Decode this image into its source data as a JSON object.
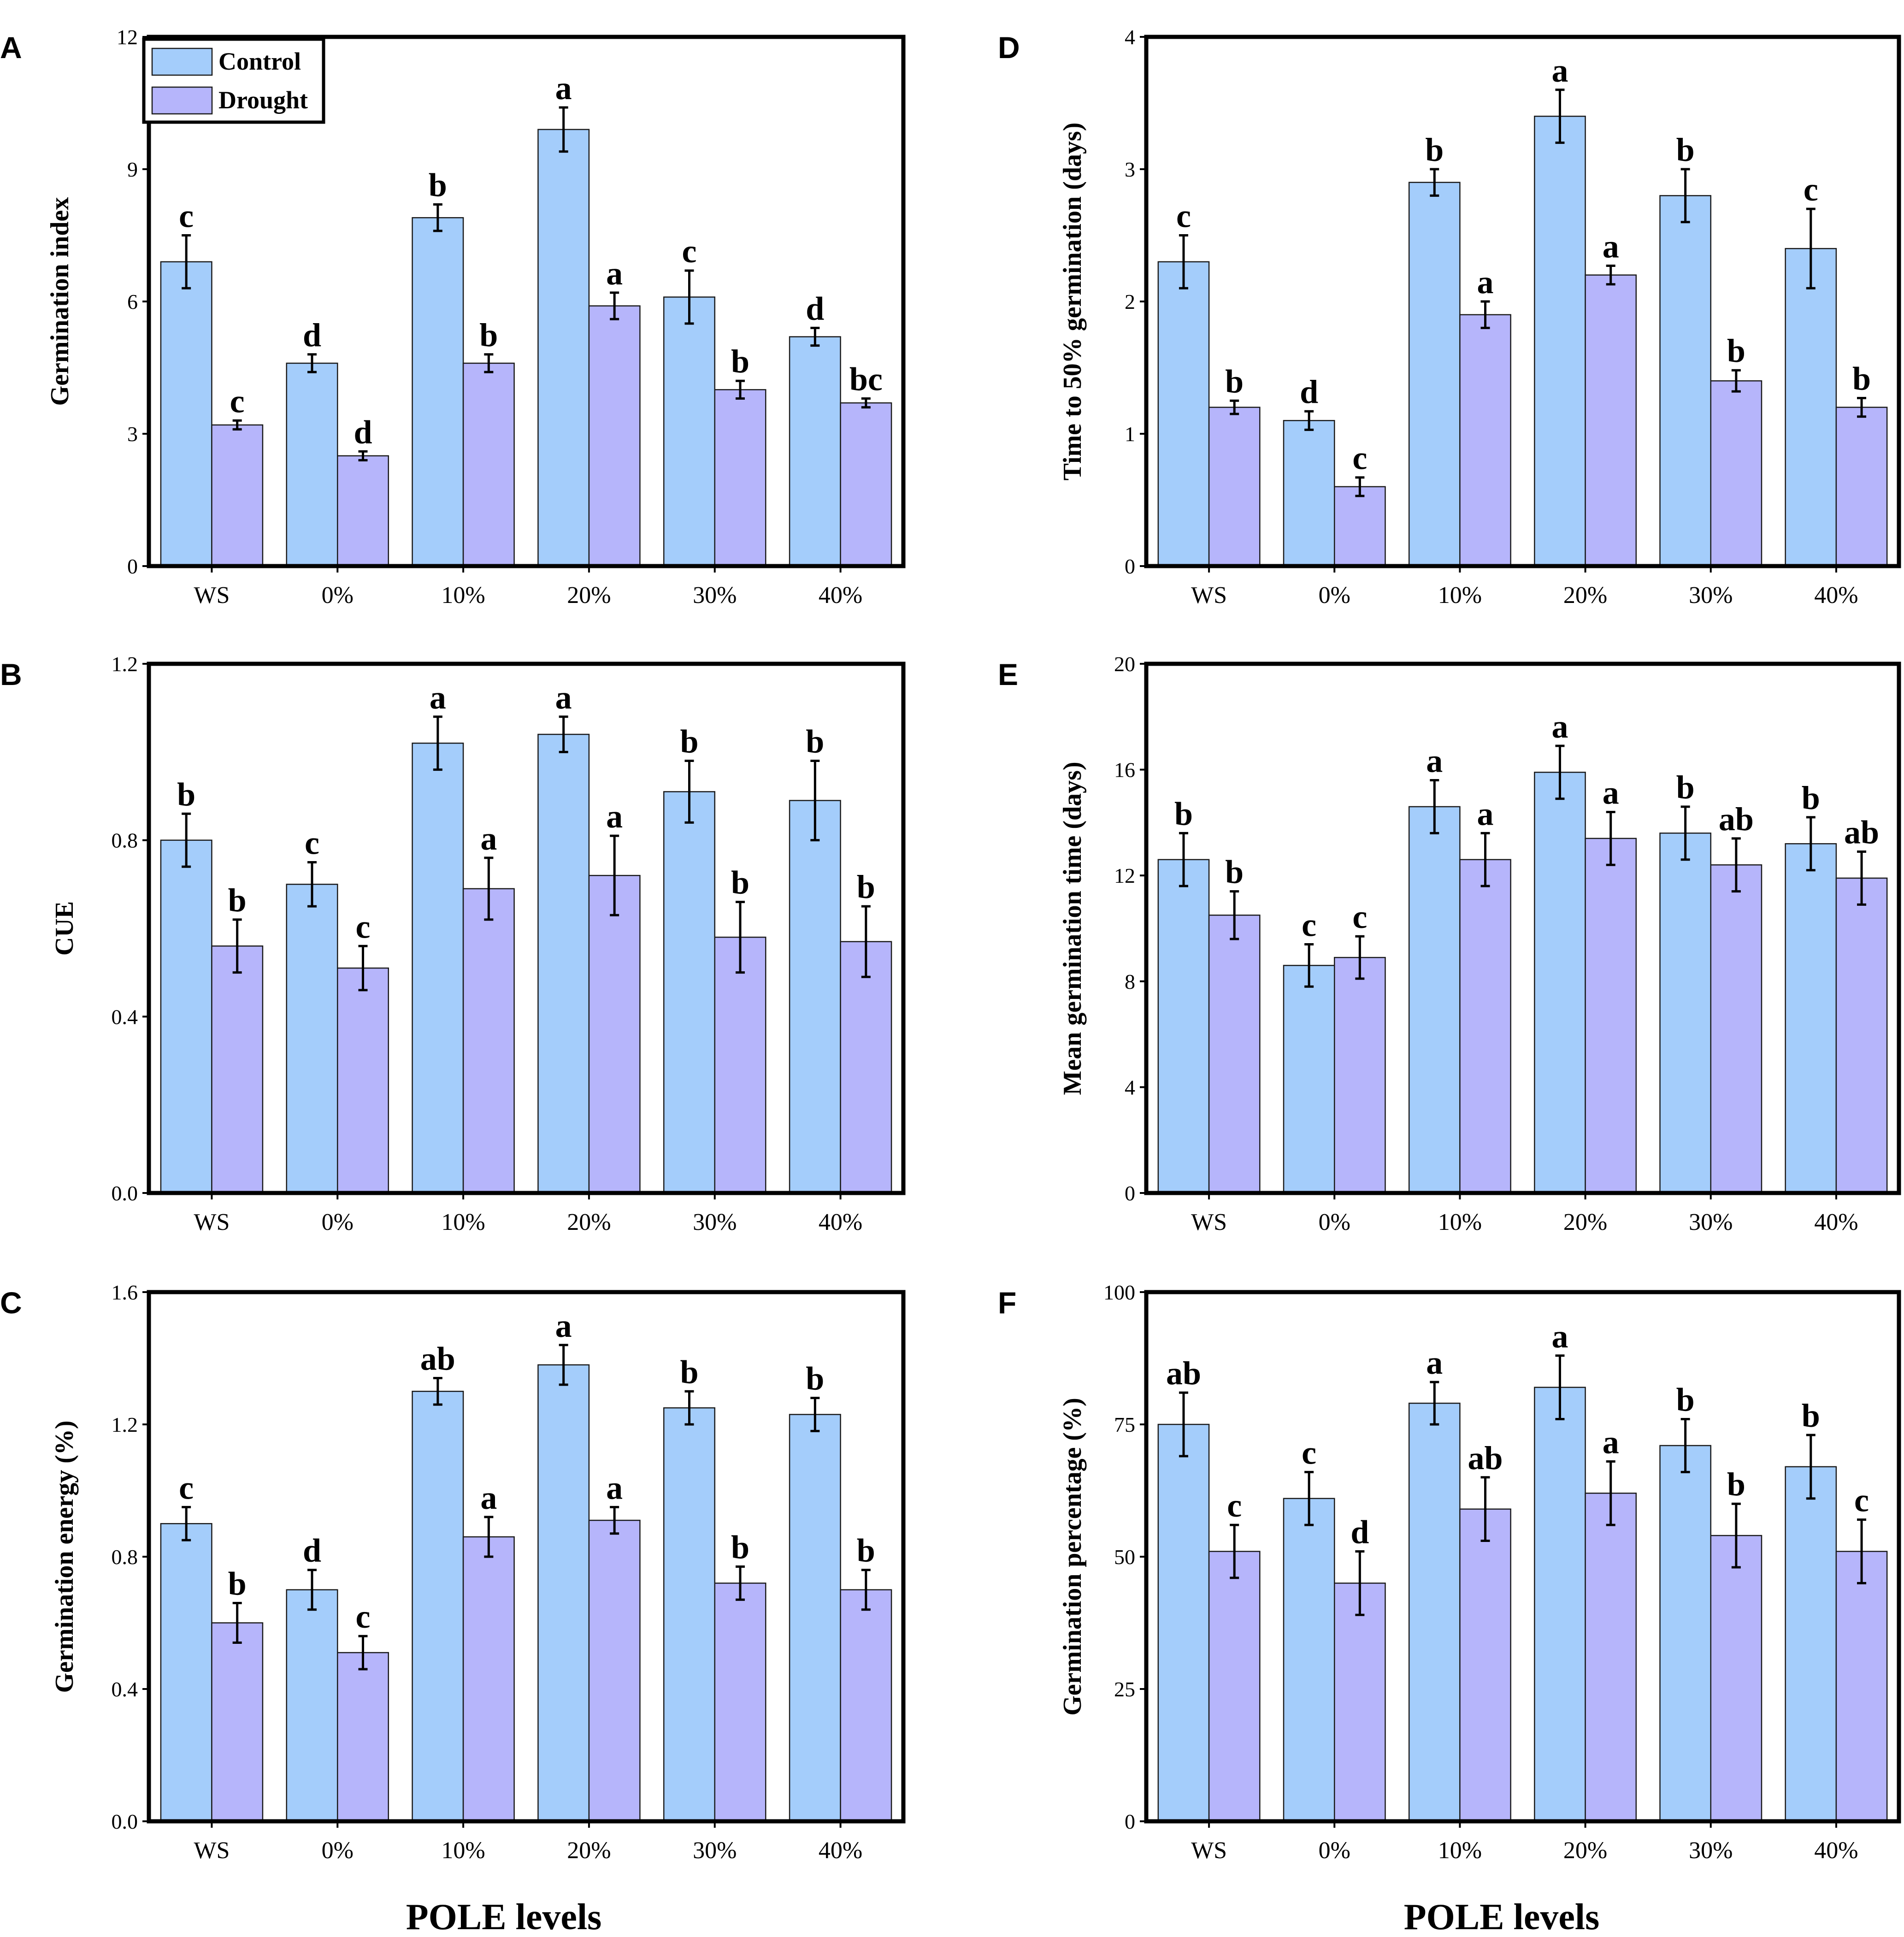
{
  "legend": {
    "items": [
      {
        "name": "Control",
        "color": "#a4cdfb"
      },
      {
        "name": "Drought",
        "color": "#b6b5fb"
      }
    ]
  },
  "xtitle": "POLE levels",
  "chart_data": [
    {
      "panel": "A",
      "type": "bar",
      "ylabel": "Germination index",
      "categories": [
        "WS",
        "0%",
        "10%",
        "20%",
        "30%",
        "40%"
      ],
      "ylim": [
        0,
        12
      ],
      "yticks": [
        "0",
        "3",
        "6",
        "9",
        "12"
      ],
      "series": [
        {
          "name": "Control",
          "values": [
            6.9,
            4.6,
            7.9,
            9.9,
            6.1,
            5.2
          ],
          "errors": [
            0.6,
            0.2,
            0.3,
            0.5,
            0.6,
            0.2
          ],
          "letters": [
            "c",
            "d",
            "b",
            "a",
            "c",
            "d"
          ]
        },
        {
          "name": "Drought",
          "values": [
            3.2,
            2.5,
            4.6,
            5.9,
            4.0,
            3.7
          ],
          "errors": [
            0.1,
            0.1,
            0.2,
            0.3,
            0.2,
            0.1
          ],
          "letters": [
            "c",
            "d",
            "b",
            "a",
            "b",
            "bc"
          ]
        }
      ]
    },
    {
      "panel": "B",
      "type": "bar",
      "ylabel": "CUE",
      "categories": [
        "WS",
        "0%",
        "10%",
        "20%",
        "30%",
        "40%"
      ],
      "ylim": [
        0,
        1.2
      ],
      "yticks": [
        "0.0",
        "0.4",
        "0.8",
        "1.2"
      ],
      "series": [
        {
          "name": "Control",
          "values": [
            0.8,
            0.7,
            1.02,
            1.04,
            0.91,
            0.89
          ],
          "errors": [
            0.06,
            0.05,
            0.06,
            0.04,
            0.07,
            0.09
          ],
          "letters": [
            "b",
            "c",
            "a",
            "a",
            "b",
            "b"
          ]
        },
        {
          "name": "Drought",
          "values": [
            0.56,
            0.51,
            0.69,
            0.72,
            0.58,
            0.57
          ],
          "errors": [
            0.06,
            0.05,
            0.07,
            0.09,
            0.08,
            0.08
          ],
          "letters": [
            "b",
            "c",
            "a",
            "a",
            "b",
            "b"
          ]
        }
      ]
    },
    {
      "panel": "C",
      "type": "bar",
      "ylabel": "Germination energy (%)",
      "categories": [
        "WS",
        "0%",
        "10%",
        "20%",
        "30%",
        "40%"
      ],
      "ylim": [
        0,
        1.6
      ],
      "yticks": [
        "0.0",
        "0.4",
        "0.8",
        "1.2",
        "1.6"
      ],
      "series": [
        {
          "name": "Control",
          "values": [
            0.9,
            0.7,
            1.3,
            1.38,
            1.25,
            1.23
          ],
          "errors": [
            0.05,
            0.06,
            0.04,
            0.06,
            0.05,
            0.05
          ],
          "letters": [
            "c",
            "d",
            "ab",
            "a",
            "b",
            "b"
          ]
        },
        {
          "name": "Drought",
          "values": [
            0.6,
            0.51,
            0.86,
            0.91,
            0.72,
            0.7
          ],
          "errors": [
            0.06,
            0.05,
            0.06,
            0.04,
            0.05,
            0.06
          ],
          "letters": [
            "b",
            "c",
            "a",
            "a",
            "b",
            "b"
          ]
        }
      ]
    },
    {
      "panel": "D",
      "type": "bar",
      "ylabel": "Time to 50% germination (days)",
      "categories": [
        "WS",
        "0%",
        "10%",
        "20%",
        "30%",
        "40%"
      ],
      "ylim": [
        0,
        4
      ],
      "yticks": [
        "0",
        "1",
        "2",
        "3",
        "4"
      ],
      "series": [
        {
          "name": "Control",
          "values": [
            2.3,
            1.1,
            2.9,
            3.4,
            2.8,
            2.4
          ],
          "errors": [
            0.2,
            0.07,
            0.1,
            0.2,
            0.2,
            0.3
          ],
          "letters": [
            "c",
            "d",
            "b",
            "a",
            "b",
            "c"
          ]
        },
        {
          "name": "Drought",
          "values": [
            1.2,
            0.6,
            1.9,
            2.2,
            1.4,
            1.2
          ],
          "errors": [
            0.05,
            0.07,
            0.1,
            0.07,
            0.08,
            0.07
          ],
          "letters": [
            "b",
            "c",
            "a",
            "a",
            "b",
            "b"
          ]
        }
      ]
    },
    {
      "panel": "E",
      "type": "bar",
      "ylabel": "Mean germination time (days)",
      "categories": [
        "WS",
        "0%",
        "10%",
        "20%",
        "30%",
        "40%"
      ],
      "ylim": [
        0,
        20
      ],
      "yticks": [
        "0",
        "4",
        "8",
        "12",
        "16",
        "20"
      ],
      "series": [
        {
          "name": "Control",
          "values": [
            12.6,
            8.6,
            14.6,
            15.9,
            13.6,
            13.2
          ],
          "errors": [
            1.0,
            0.8,
            1.0,
            1.0,
            1.0,
            1.0
          ],
          "letters": [
            "b",
            "c",
            "a",
            "a",
            "b",
            "b"
          ]
        },
        {
          "name": "Drought",
          "values": [
            10.5,
            8.9,
            12.6,
            13.4,
            12.4,
            11.9
          ],
          "errors": [
            0.9,
            0.8,
            1.0,
            1.0,
            1.0,
            1.0
          ],
          "letters": [
            "b",
            "c",
            "a",
            "a",
            "ab",
            "ab"
          ]
        }
      ]
    },
    {
      "panel": "F",
      "type": "bar",
      "ylabel": "Germination percentage (%)",
      "categories": [
        "WS",
        "0%",
        "10%",
        "20%",
        "30%",
        "40%"
      ],
      "ylim": [
        0,
        100
      ],
      "yticks": [
        "0",
        "25",
        "50",
        "75",
        "100"
      ],
      "series": [
        {
          "name": "Control",
          "values": [
            75,
            61,
            79,
            82,
            71,
            67
          ],
          "errors": [
            6,
            5,
            4,
            6,
            5,
            6
          ],
          "letters": [
            "ab",
            "c",
            "a",
            "a",
            "b",
            "b"
          ]
        },
        {
          "name": "Drought",
          "values": [
            51,
            45,
            59,
            62,
            54,
            51
          ],
          "errors": [
            5,
            6,
            6,
            6,
            6,
            6
          ],
          "letters": [
            "c",
            "d",
            "ab",
            "a",
            "b",
            "c"
          ]
        }
      ]
    }
  ]
}
